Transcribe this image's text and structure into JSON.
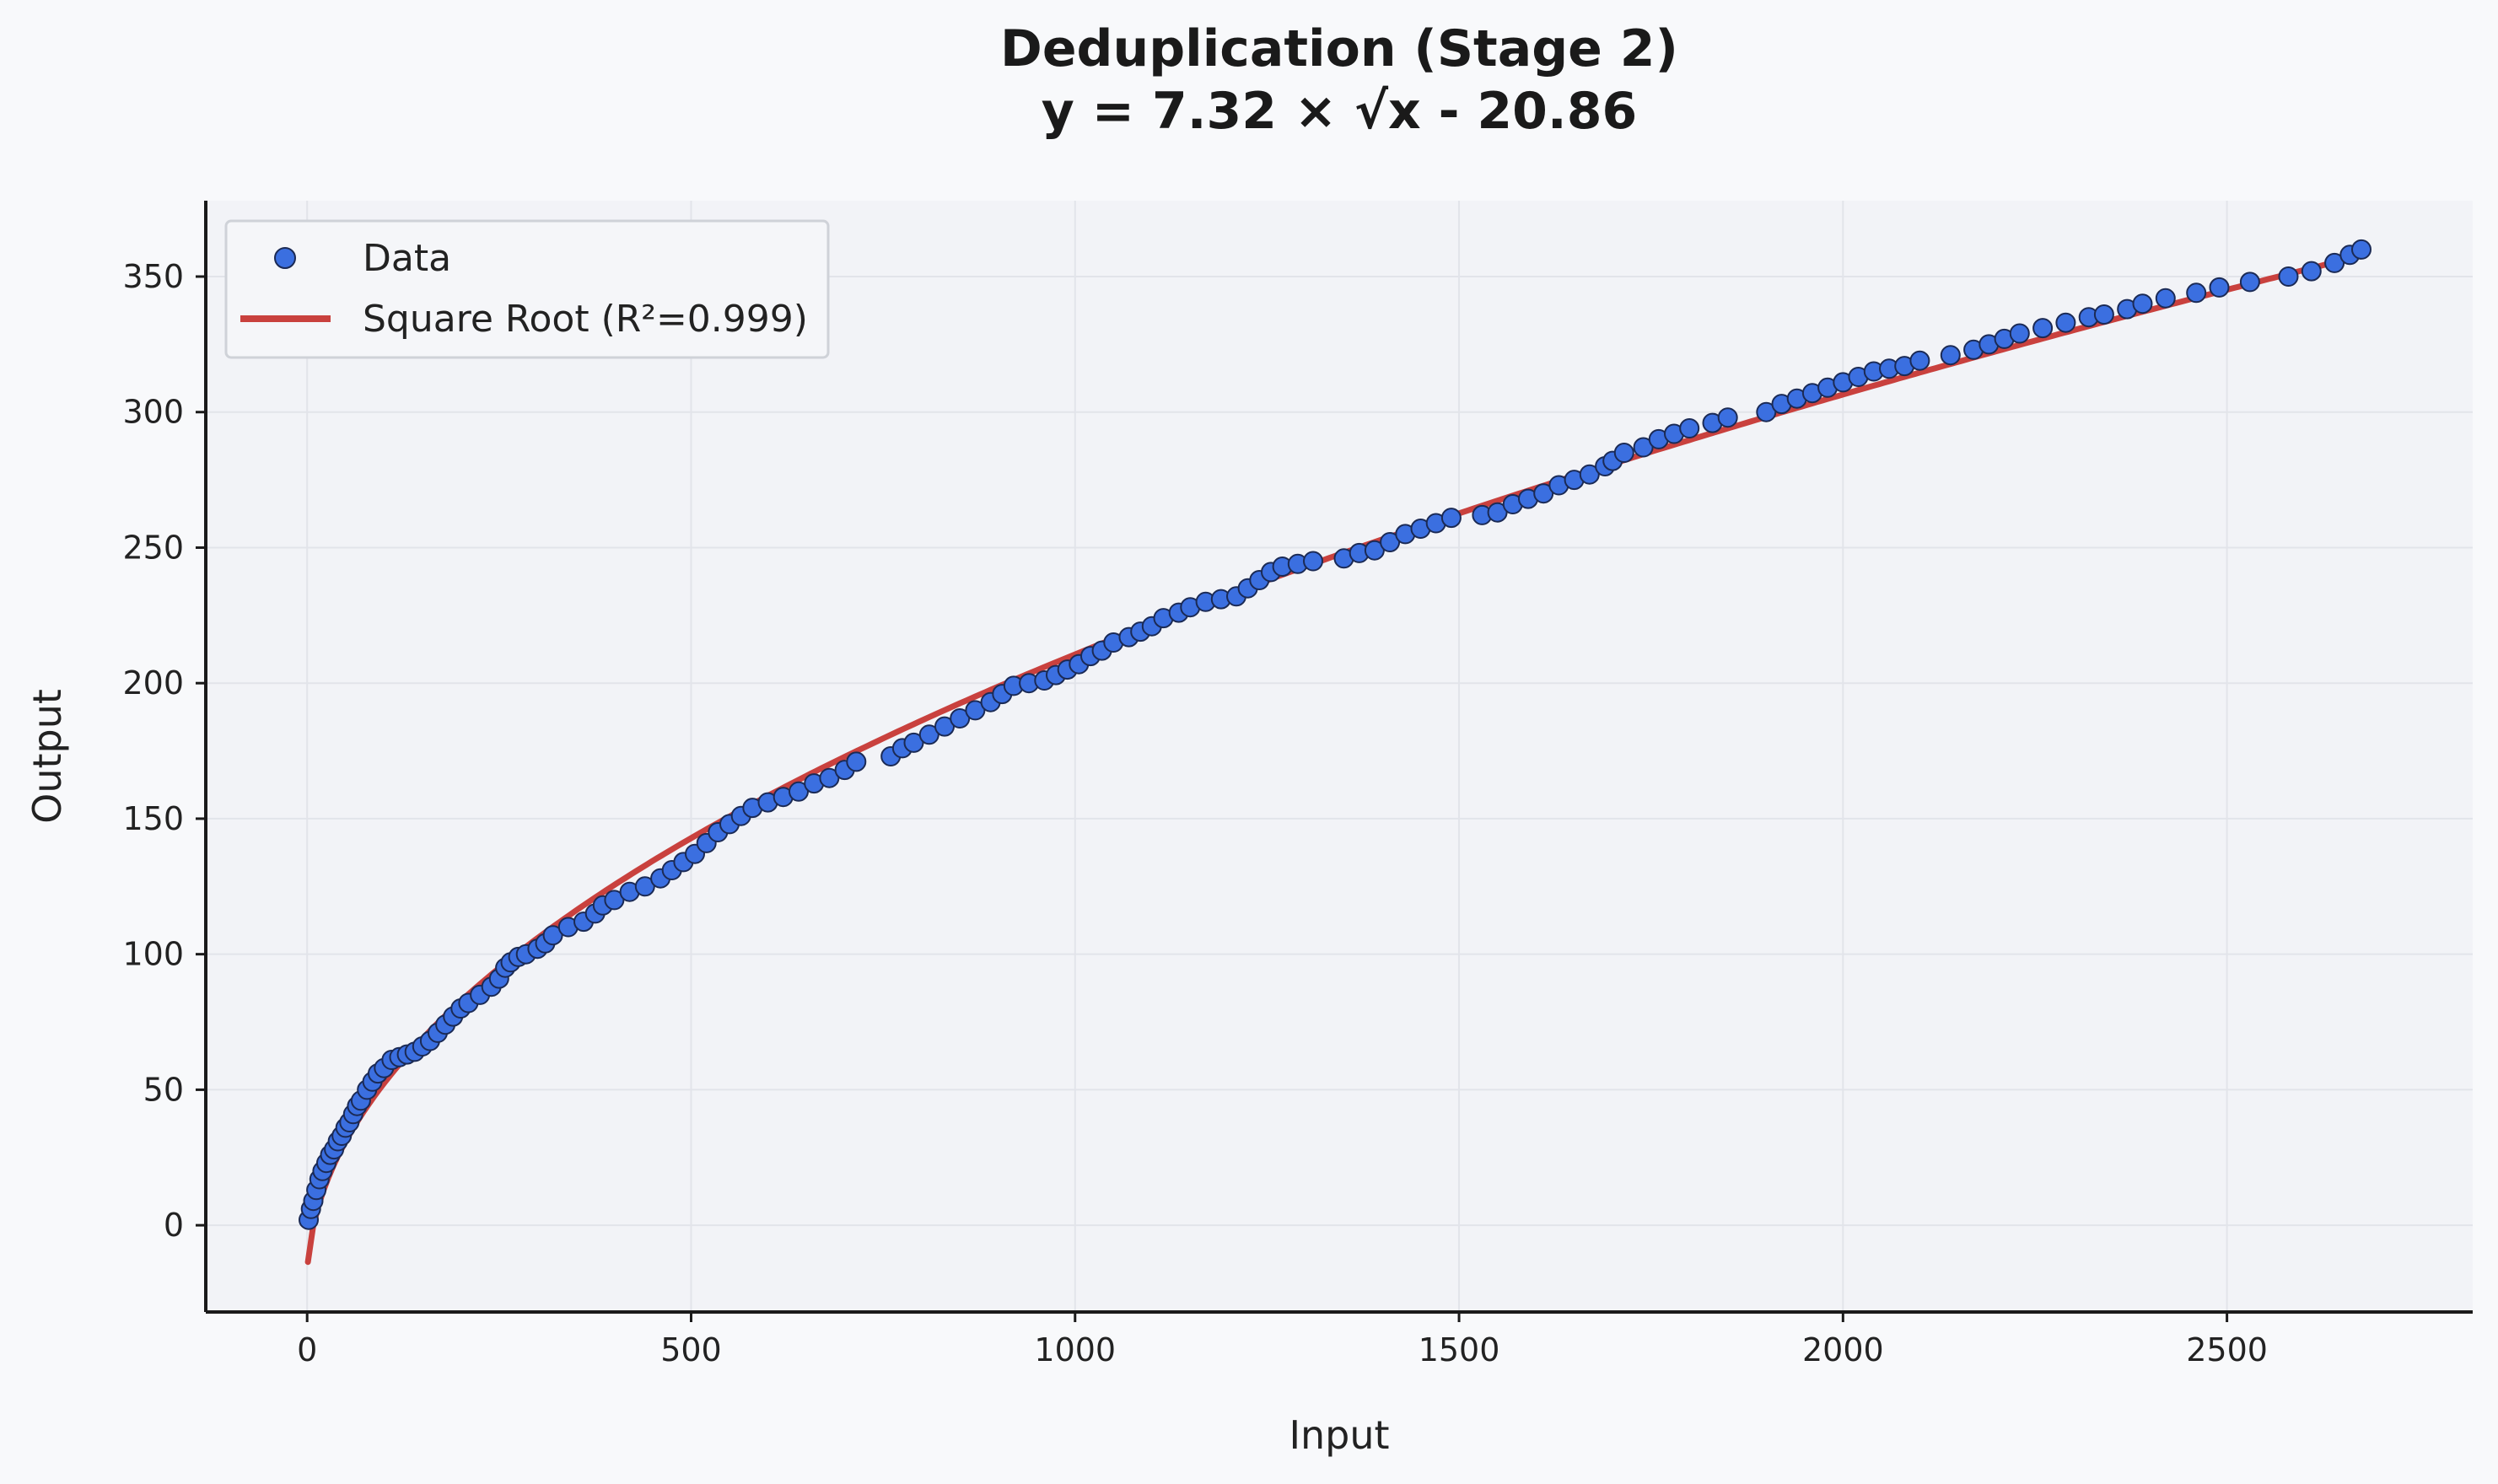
{
  "chart_data": {
    "type": "scatter",
    "title": "Deduplication (Stage 2)",
    "subtitle": "y = 7.32 × √x - 20.86",
    "xlabel": "Input",
    "ylabel": "Output",
    "xlim": [
      -132,
      2820
    ],
    "ylim": [
      -32,
      378
    ],
    "xticks": [
      0,
      500,
      1000,
      1500,
      2000,
      2500
    ],
    "yticks": [
      0,
      50,
      100,
      150,
      200,
      250,
      300,
      350
    ],
    "grid": true,
    "legend": {
      "position": "top-left",
      "entries": [
        "Data",
        "Square Root (R²=0.999)"
      ]
    },
    "colors": {
      "points": "#3b6fe0",
      "point_edge": "#1b2a55",
      "fit_line": "#c9413e",
      "plot_bg": "#f2f3f7",
      "grid": "#e2e4ea"
    },
    "series": [
      {
        "name": "Data",
        "type": "scatter",
        "points": [
          [
            2,
            2
          ],
          [
            5,
            6
          ],
          [
            8,
            9
          ],
          [
            12,
            13
          ],
          [
            16,
            17
          ],
          [
            20,
            20
          ],
          [
            25,
            23
          ],
          [
            30,
            26
          ],
          [
            35,
            28
          ],
          [
            40,
            31
          ],
          [
            45,
            33
          ],
          [
            50,
            36
          ],
          [
            55,
            38
          ],
          [
            60,
            41
          ],
          [
            65,
            44
          ],
          [
            70,
            46
          ],
          [
            78,
            50
          ],
          [
            85,
            53
          ],
          [
            92,
            56
          ],
          [
            100,
            58
          ],
          [
            110,
            61
          ],
          [
            120,
            62
          ],
          [
            130,
            63
          ],
          [
            140,
            64
          ],
          [
            150,
            66
          ],
          [
            160,
            68
          ],
          [
            170,
            71
          ],
          [
            180,
            74
          ],
          [
            190,
            77
          ],
          [
            200,
            80
          ],
          [
            210,
            82
          ],
          [
            225,
            85
          ],
          [
            240,
            88
          ],
          [
            250,
            91
          ],
          [
            258,
            95
          ],
          [
            265,
            97
          ],
          [
            275,
            99
          ],
          [
            285,
            100
          ],
          [
            300,
            102
          ],
          [
            310,
            104
          ],
          [
            320,
            107
          ],
          [
            340,
            110
          ],
          [
            360,
            112
          ],
          [
            375,
            115
          ],
          [
            385,
            118
          ],
          [
            400,
            120
          ],
          [
            420,
            123
          ],
          [
            440,
            125
          ],
          [
            460,
            128
          ],
          [
            475,
            131
          ],
          [
            490,
            134
          ],
          [
            505,
            137
          ],
          [
            520,
            141
          ],
          [
            535,
            145
          ],
          [
            550,
            148
          ],
          [
            565,
            151
          ],
          [
            580,
            154
          ],
          [
            600,
            156
          ],
          [
            620,
            158
          ],
          [
            640,
            160
          ],
          [
            660,
            163
          ],
          [
            680,
            165
          ],
          [
            700,
            168
          ],
          [
            715,
            171
          ],
          [
            760,
            173
          ],
          [
            775,
            176
          ],
          [
            790,
            178
          ],
          [
            810,
            181
          ],
          [
            830,
            184
          ],
          [
            850,
            187
          ],
          [
            870,
            190
          ],
          [
            890,
            193
          ],
          [
            905,
            196
          ],
          [
            920,
            199
          ],
          [
            940,
            200
          ],
          [
            960,
            201
          ],
          [
            975,
            203
          ],
          [
            990,
            205
          ],
          [
            1005,
            207
          ],
          [
            1020,
            210
          ],
          [
            1035,
            212
          ],
          [
            1050,
            215
          ],
          [
            1070,
            217
          ],
          [
            1085,
            219
          ],
          [
            1100,
            221
          ],
          [
            1115,
            224
          ],
          [
            1135,
            226
          ],
          [
            1150,
            228
          ],
          [
            1170,
            230
          ],
          [
            1190,
            231
          ],
          [
            1210,
            232
          ],
          [
            1225,
            235
          ],
          [
            1240,
            238
          ],
          [
            1255,
            241
          ],
          [
            1270,
            243
          ],
          [
            1290,
            244
          ],
          [
            1310,
            245
          ],
          [
            1350,
            246
          ],
          [
            1370,
            248
          ],
          [
            1390,
            249
          ],
          [
            1410,
            252
          ],
          [
            1430,
            255
          ],
          [
            1450,
            257
          ],
          [
            1470,
            259
          ],
          [
            1490,
            261
          ],
          [
            1530,
            262
          ],
          [
            1550,
            263
          ],
          [
            1570,
            266
          ],
          [
            1590,
            268
          ],
          [
            1610,
            270
          ],
          [
            1630,
            273
          ],
          [
            1650,
            275
          ],
          [
            1670,
            277
          ],
          [
            1690,
            280
          ],
          [
            1700,
            282
          ],
          [
            1715,
            285
          ],
          [
            1740,
            287
          ],
          [
            1760,
            290
          ],
          [
            1780,
            292
          ],
          [
            1800,
            294
          ],
          [
            1830,
            296
          ],
          [
            1850,
            298
          ],
          [
            1900,
            300
          ],
          [
            1920,
            303
          ],
          [
            1940,
            305
          ],
          [
            1960,
            307
          ],
          [
            1980,
            309
          ],
          [
            2000,
            311
          ],
          [
            2020,
            313
          ],
          [
            2040,
            315
          ],
          [
            2060,
            316
          ],
          [
            2080,
            317
          ],
          [
            2100,
            319
          ],
          [
            2140,
            321
          ],
          [
            2170,
            323
          ],
          [
            2190,
            325
          ],
          [
            2210,
            327
          ],
          [
            2230,
            329
          ],
          [
            2260,
            331
          ],
          [
            2290,
            333
          ],
          [
            2320,
            335
          ],
          [
            2340,
            336
          ],
          [
            2370,
            338
          ],
          [
            2390,
            340
          ],
          [
            2420,
            342
          ],
          [
            2460,
            344
          ],
          [
            2490,
            346
          ],
          [
            2530,
            348
          ],
          [
            2580,
            350
          ],
          [
            2610,
            352
          ],
          [
            2640,
            355
          ],
          [
            2660,
            358
          ],
          [
            2675,
            360
          ]
        ]
      },
      {
        "name": "Square Root (R²=0.999)",
        "type": "line",
        "fit": {
          "a": 7.32,
          "b": -20.86,
          "x_min": 1,
          "x_max": 2675
        }
      }
    ]
  }
}
